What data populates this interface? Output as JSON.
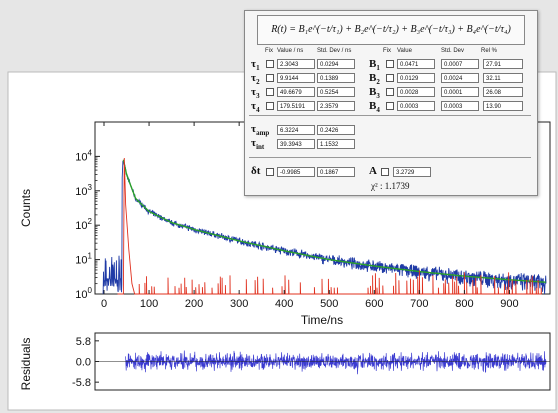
{
  "chart_data": {
    "type": "line",
    "xlabel": "Time/ns",
    "ylabel": "Counts",
    "residual_ylabel": "Residuals",
    "x_ticks": [
      0,
      100,
      200,
      300,
      400,
      500,
      600,
      700,
      800,
      900
    ],
    "xlim": [
      -20,
      990
    ],
    "y_scale": "log",
    "y_ticks": [
      "10^0",
      "10^1",
      "10^2",
      "10^3",
      "10^4"
    ],
    "ylim": [
      1,
      100000
    ],
    "residual_ticks": [
      "5.8",
      "0.0",
      "-5.8"
    ],
    "residual_ylim": [
      -8,
      8
    ],
    "series": [
      {
        "color": "#1f3aa6",
        "points": [
          [
            0,
            2
          ],
          [
            30,
            1.8
          ],
          [
            42,
            8000
          ],
          [
            50,
            3000
          ],
          [
            70,
            600
          ],
          [
            100,
            250
          ],
          [
            150,
            120
          ],
          [
            200,
            75
          ],
          [
            300,
            35
          ],
          [
            400,
            18
          ],
          [
            500,
            10
          ],
          [
            600,
            6.5
          ],
          [
            700,
            4.5
          ],
          [
            800,
            3.3
          ],
          [
            900,
            2.6
          ],
          [
            980,
            2.2
          ]
        ]
      },
      {
        "color": "#2aa12a",
        "points": [
          [
            43,
            8000
          ],
          [
            50,
            3000
          ],
          [
            70,
            600
          ],
          [
            100,
            250
          ],
          [
            150,
            120
          ],
          [
            200,
            75
          ],
          [
            300,
            35
          ],
          [
            400,
            18
          ],
          [
            500,
            10
          ],
          [
            600,
            6.5
          ],
          [
            700,
            4.5
          ],
          [
            800,
            3.3
          ],
          [
            900,
            2.6
          ],
          [
            980,
            2.2
          ]
        ]
      },
      {
        "color": "#e0301e",
        "points": [
          [
            30,
            1
          ],
          [
            45,
            9000
          ],
          [
            50,
            300
          ],
          [
            60,
            5
          ],
          [
            70,
            1
          ],
          [
            980,
            1
          ]
        ]
      }
    ],
    "residual_series_color": "#3a3ad0"
  },
  "fit_panel": {
    "equation": "R(t) = B₁e^(−t/τ₁) + B₂e^(−t/τ₂) + B₃e^(−t/τ₃) + B₄e^(−t/τ₄)",
    "headers": [
      "Fix",
      "Value / ns",
      "Std. Dev / ns",
      "Fix",
      "Value",
      "Std. Dev",
      "Rel %"
    ],
    "rows": [
      {
        "tau": "τ",
        "sub": "1",
        "value": "2.3043",
        "std": "0.0294",
        "b": "B",
        "bsub": "1",
        "bval": "0.0471",
        "bstd": "0.0007",
        "rel": "27.91"
      },
      {
        "tau": "τ",
        "sub": "2",
        "value": "9.9144",
        "std": "0.1389",
        "b": "B",
        "bsub": "2",
        "bval": "0.0129",
        "bstd": "0.0024",
        "rel": "32.11"
      },
      {
        "tau": "τ",
        "sub": "3",
        "value": "49.6679",
        "std": "0.5254",
        "b": "B",
        "bsub": "3",
        "bval": "0.0028",
        "bstd": "0.0001",
        "rel": "26.08"
      },
      {
        "tau": "τ",
        "sub": "4",
        "value": "179.5191",
        "std": "2.3579",
        "b": "B",
        "bsub": "4",
        "bval": "0.0003",
        "bstd": "0.0003",
        "rel": "13.90"
      }
    ],
    "averages": [
      {
        "label": "τ",
        "sub": "amp",
        "value": "6.3224",
        "std": "0.2426"
      },
      {
        "label": "τ",
        "sub": "int",
        "value": "39.3943",
        "std": "1.1532"
      }
    ],
    "shift": {
      "label": "δt",
      "value": "-0.9985",
      "std": "0.1867"
    },
    "a": {
      "label": "A",
      "value": "3.2729"
    },
    "chi2": "χ² : 1.1739"
  }
}
